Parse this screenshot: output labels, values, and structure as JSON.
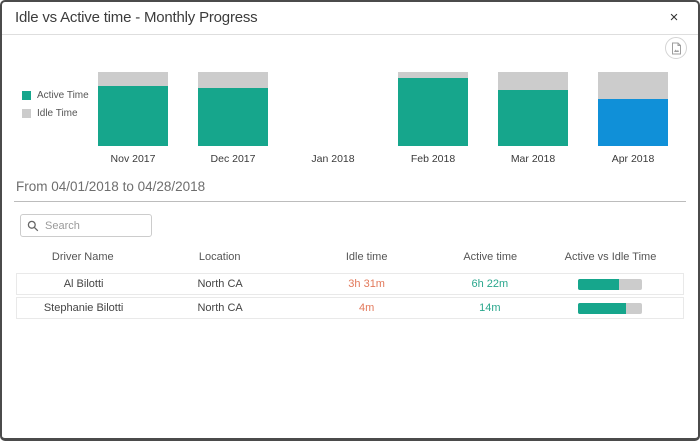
{
  "dialog": {
    "title": "Idle vs Active time - Monthly Progress"
  },
  "icons": {
    "close": "×",
    "search": "magnifier",
    "export": "document-image"
  },
  "chart_data": {
    "type": "bar",
    "stacked": true,
    "percent_stacked": true,
    "title": "",
    "categories": [
      "Nov 2017",
      "Dec 2017",
      "Jan 2018",
      "Feb 2018",
      "Mar 2018",
      "Apr 2018"
    ],
    "series": [
      {
        "name": "Active Time",
        "color": "#16a68c",
        "values": [
          81,
          78,
          0,
          92,
          76,
          64
        ]
      },
      {
        "name": "Idle Time",
        "color": "#cccccc",
        "values": [
          19,
          22,
          0,
          8,
          24,
          36
        ]
      }
    ],
    "highlight_category": "Apr 2018",
    "highlight_series": "Active Time",
    "highlight_color": "#1090d8",
    "legend_position": "left",
    "axes_hidden": true,
    "ylim": [
      0,
      100
    ]
  },
  "filter": {
    "date_range": "From 04/01/2018 to 04/28/2018"
  },
  "search": {
    "placeholder": "Search",
    "value": ""
  },
  "table": {
    "headers": [
      "Driver Name",
      "Location",
      "Idle time",
      "Active time",
      "Active vs Idle Time"
    ],
    "rows": [
      {
        "driver": "Al Bilotti",
        "location": "North CA",
        "idle_time": "3h 31m",
        "active_time": "6h 22m",
        "active_pct": 64
      },
      {
        "driver": "Stephanie Bilotti",
        "location": "North CA",
        "idle_time": "4m",
        "active_time": "14m",
        "active_pct": 76
      }
    ]
  },
  "colors": {
    "active": "#16a68c",
    "idle": "#cccccc",
    "highlight_blue": "#1090d8",
    "idle_text": "#e2795b",
    "active_text": "#2aa78d"
  }
}
